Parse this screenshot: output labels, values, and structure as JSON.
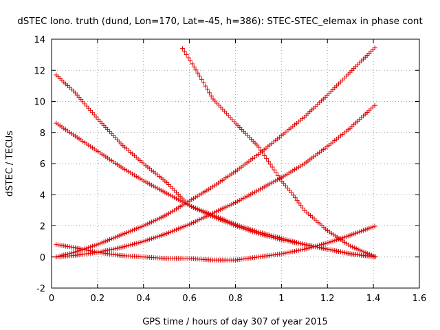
{
  "chart_data": {
    "type": "scatter",
    "title": "dSTEC Iono. truth (dund, Lon=170, Lat=-45, h=386): STEC-STEC_elemax in phase cont",
    "xlabel": "GPS time / hours of day 307 of year 2015",
    "ylabel": "dSTEC  / TECUs",
    "xlim": [
      0,
      1.6
    ],
    "ylim": [
      -2,
      14
    ],
    "xticks": [
      0,
      0.2,
      0.4,
      0.6,
      0.8,
      1,
      1.2,
      1.4,
      1.6
    ],
    "xtick_labels": [
      "0",
      "0.2",
      "0.4",
      "0.6",
      "0.8",
      "1",
      "1.2",
      "1.4",
      "1.6"
    ],
    "yticks": [
      -2,
      0,
      2,
      4,
      6,
      8,
      10,
      12,
      14
    ],
    "ytick_labels": [
      "-2",
      "0",
      "2",
      "4",
      "6",
      "8",
      "10",
      "12",
      "14"
    ],
    "grid": true,
    "marker": "+",
    "color": "#e00000",
    "series": [
      {
        "x": [
          0.02,
          0.1,
          0.2,
          0.3,
          0.4,
          0.5,
          0.6,
          0.7,
          0.8,
          0.9,
          1.0,
          1.1,
          1.2,
          1.3,
          1.41
        ],
        "y": [
          11.7,
          10.6,
          8.9,
          7.3,
          6.0,
          4.8,
          3.3,
          2.6,
          2.0,
          1.5,
          1.1,
          0.8,
          0.5,
          0.2,
          0.0
        ]
      },
      {
        "x": [
          0.02,
          0.1,
          0.2,
          0.3,
          0.4,
          0.5,
          0.6,
          0.7,
          0.8,
          0.9,
          1.0,
          1.1,
          1.2,
          1.3,
          1.41
        ],
        "y": [
          8.6,
          7.8,
          6.8,
          5.8,
          4.9,
          4.1,
          3.3,
          2.7,
          2.1,
          1.6,
          1.2,
          0.8,
          0.5,
          0.2,
          0.0
        ]
      },
      {
        "x": [
          0.57,
          0.65,
          0.7,
          0.8,
          0.9,
          1.0,
          1.05,
          1.1,
          1.2,
          1.3,
          1.41
        ],
        "y": [
          13.4,
          11.5,
          10.2,
          8.6,
          7.1,
          4.9,
          4.0,
          3.0,
          1.7,
          0.7,
          0.0
        ]
      },
      {
        "x": [
          0.02,
          0.1,
          0.2,
          0.3,
          0.4,
          0.5,
          0.6,
          0.7,
          0.8,
          0.9,
          1.0,
          1.1,
          1.2,
          1.3,
          1.41
        ],
        "y": [
          0.0,
          0.3,
          0.8,
          1.4,
          2.0,
          2.7,
          3.6,
          4.5,
          5.5,
          6.6,
          7.8,
          9.0,
          10.4,
          11.9,
          13.5
        ]
      },
      {
        "x": [
          0.02,
          0.1,
          0.2,
          0.3,
          0.4,
          0.5,
          0.6,
          0.7,
          0.8,
          0.9,
          1.0,
          1.1,
          1.2,
          1.3,
          1.41
        ],
        "y": [
          0.0,
          0.1,
          0.3,
          0.6,
          1.0,
          1.5,
          2.1,
          2.8,
          3.5,
          4.3,
          5.1,
          6.0,
          7.1,
          8.3,
          9.8
        ]
      },
      {
        "x": [
          0.02,
          0.1,
          0.2,
          0.3,
          0.4,
          0.5,
          0.6,
          0.7,
          0.8,
          0.9,
          1.0,
          1.1,
          1.2,
          1.3,
          1.41
        ],
        "y": [
          0.8,
          0.6,
          0.3,
          0.1,
          0.0,
          -0.1,
          -0.1,
          -0.2,
          -0.2,
          0.0,
          0.2,
          0.5,
          0.9,
          1.4,
          2.0
        ]
      }
    ]
  }
}
